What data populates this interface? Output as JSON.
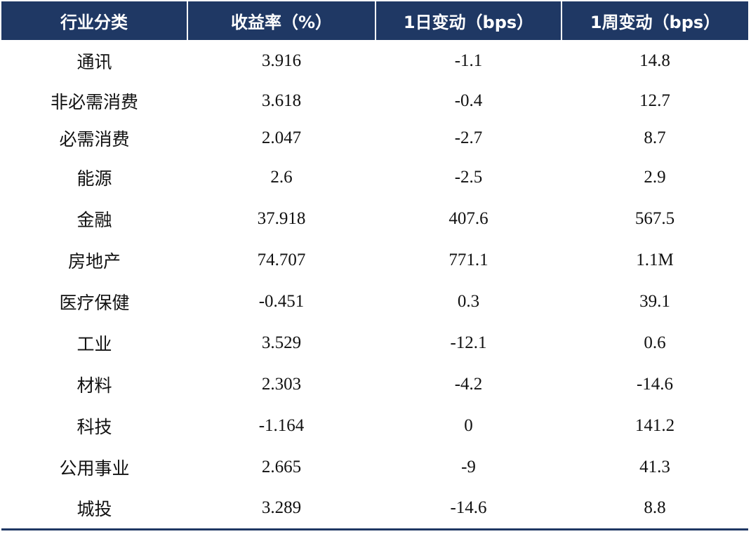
{
  "table": {
    "headers": [
      "行业分类",
      "收益率（%）",
      "1日变动（bps）",
      "1周变动（bps）"
    ],
    "rows": [
      [
        "通讯",
        "3.916",
        "-1.1",
        "14.8"
      ],
      [
        "非必需消费",
        "3.618",
        "-0.4",
        "12.7"
      ],
      [
        "必需消费",
        "2.047",
        "-2.7",
        "8.7"
      ],
      [
        "能源",
        "2.6",
        "-2.5",
        "2.9"
      ],
      [
        "金融",
        "37.918",
        "407.6",
        "567.5"
      ],
      [
        "房地产",
        "74.707",
        "771.1",
        "1.1M"
      ],
      [
        "医疗保健",
        "-0.451",
        "0.3",
        "39.1"
      ],
      [
        "工业",
        "3.529",
        "-12.1",
        "0.6"
      ],
      [
        "材料",
        "2.303",
        "-4.2",
        "-14.6"
      ],
      [
        "科技",
        "-1.164",
        "0",
        "141.2"
      ],
      [
        "公用事业",
        "2.665",
        "-9",
        "41.3"
      ],
      [
        "城投",
        "3.289",
        "-14.6",
        "8.8"
      ]
    ]
  },
  "colors": {
    "header_bg": "#1f3864",
    "header_text": "#ffffff",
    "body_text": "#111111"
  }
}
